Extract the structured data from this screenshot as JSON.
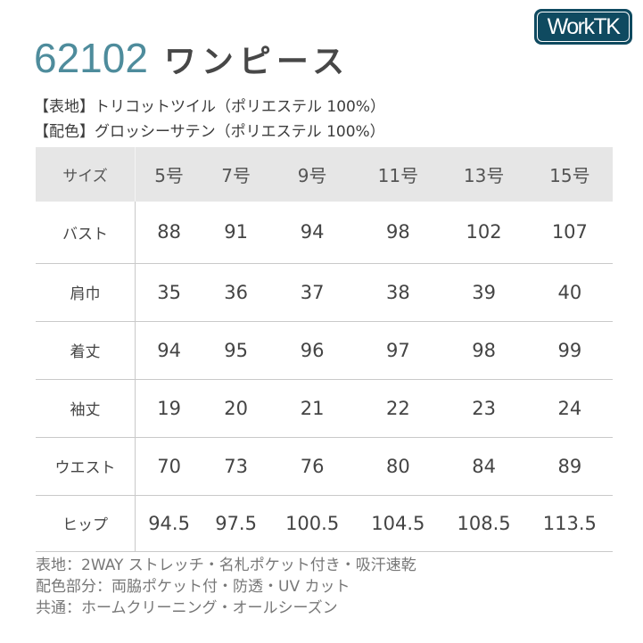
{
  "logo": {
    "text": "WorkTK",
    "color": "#0f4a60"
  },
  "title": {
    "code": "62102",
    "name": "ワンピース",
    "code_color": "#4e8c9c"
  },
  "fabric": [
    "【表地】トリコットツイル（ポリエステル 100%）",
    "【配色】グロッシーサテン（ポリエステル 100%）"
  ],
  "size_table": {
    "header": [
      "サイズ",
      "5号",
      "7号",
      "9号",
      "11号",
      "13号",
      "15号"
    ],
    "rows": [
      {
        "label": "バスト",
        "values": [
          "88",
          "91",
          "94",
          "98",
          "102",
          "107"
        ]
      },
      {
        "label": "肩巾",
        "values": [
          "35",
          "36",
          "37",
          "38",
          "39",
          "40"
        ]
      },
      {
        "label": "着丈",
        "values": [
          "94",
          "95",
          "96",
          "97",
          "98",
          "99"
        ]
      },
      {
        "label": "袖丈",
        "values": [
          "19",
          "20",
          "21",
          "22",
          "23",
          "24"
        ]
      },
      {
        "label": "ウエスト",
        "values": [
          "70",
          "73",
          "76",
          "80",
          "84",
          "89"
        ]
      },
      {
        "label": "ヒップ",
        "values": [
          "94.5",
          "97.5",
          "100.5",
          "104.5",
          "108.5",
          "113.5"
        ]
      }
    ]
  },
  "notes": [
    "表地：2WAY ストレッチ・名札ポケット付き・吸汗速乾",
    "配色部分：両脇ポケット付・防透・UV カット",
    "共通：ホームクリーニング・オールシーズン"
  ]
}
